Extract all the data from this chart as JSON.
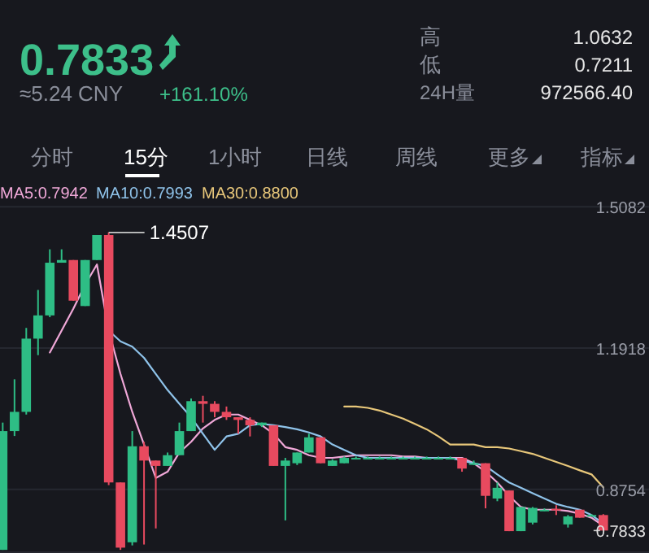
{
  "chart_data": {
    "type": "candlestick",
    "categories": [
      null,
      null,
      null,
      null,
      null,
      null,
      null,
      null,
      null,
      null,
      null,
      null,
      null,
      null,
      null,
      null,
      null,
      null,
      null,
      null,
      null,
      null,
      null,
      null,
      null,
      null,
      null,
      null,
      null,
      null,
      null,
      null,
      null,
      null,
      null,
      null,
      null,
      null,
      null,
      null,
      null,
      null,
      null,
      null,
      null,
      null,
      null,
      null,
      null,
      null,
      null,
      null
    ],
    "ohlc": [
      [
        0.74,
        1.025,
        0.74,
        1.006
      ],
      [
        1.006,
        1.122,
        0.995,
        1.049
      ],
      [
        1.049,
        1.237,
        1.043,
        1.213
      ],
      [
        1.213,
        1.322,
        1.176,
        1.265
      ],
      [
        1.265,
        1.413,
        1.261,
        1.383
      ],
      [
        1.383,
        1.413,
        1.383,
        1.389
      ],
      [
        1.389,
        1.389,
        1.298,
        1.298
      ],
      [
        1.286,
        1.389,
        1.286,
        1.389
      ],
      [
        1.389,
        1.445,
        1.389,
        1.445
      ],
      [
        1.445,
        1.4507,
        0.885,
        0.891
      ],
      [
        0.891,
        0.891,
        0.74,
        0.745
      ],
      [
        0.757,
        1.006,
        0.75,
        0.972
      ],
      [
        0.972,
        0.982,
        0.752,
        0.94
      ],
      [
        0.94,
        0.94,
        0.788,
        0.928
      ],
      [
        0.928,
        0.958,
        0.928,
        0.952
      ],
      [
        0.952,
        1.025,
        0.952,
        1.006
      ],
      [
        1.006,
        1.079,
        1.006,
        1.073
      ],
      [
        1.073,
        1.085,
        1.025,
        1.067
      ],
      [
        1.067,
        1.073,
        1.037,
        1.049
      ],
      [
        1.049,
        1.061,
        1.031,
        1.037
      ],
      [
        1.037,
        1.037,
        1.0,
        1.031
      ],
      [
        1.031,
        1.037,
        0.994,
        1.019
      ],
      [
        1.019,
        1.025,
        1.015,
        1.025
      ],
      [
        1.019,
        1.019,
        0.928,
        0.928
      ],
      [
        0.928,
        0.946,
        0.806,
        0.94
      ],
      [
        0.934,
        0.958,
        0.93,
        0.958
      ],
      [
        0.958,
        1.0,
        0.958,
        0.992
      ],
      [
        0.992,
        0.992,
        0.934,
        0.934
      ],
      [
        0.928,
        0.943,
        0.928,
        0.94
      ],
      [
        0.934,
        0.949,
        0.934,
        0.946
      ],
      [
        0.946,
        0.949,
        0.943,
        0.946
      ],
      [
        0.946,
        0.949,
        0.943,
        0.946
      ],
      [
        0.946,
        0.949,
        0.943,
        0.946
      ],
      [
        0.946,
        0.949,
        0.943,
        0.946
      ],
      [
        0.946,
        0.949,
        0.943,
        0.946
      ],
      [
        0.946,
        0.949,
        0.943,
        0.946
      ],
      [
        0.946,
        0.949,
        0.943,
        0.946
      ],
      [
        0.946,
        0.949,
        0.943,
        0.946
      ],
      [
        0.946,
        0.949,
        0.943,
        0.946
      ],
      [
        0.946,
        0.946,
        0.915,
        0.922
      ],
      [
        0.934,
        0.94,
        0.93,
        0.934
      ],
      [
        0.934,
        0.934,
        0.833,
        0.861
      ],
      [
        0.855,
        0.891,
        0.849,
        0.879
      ],
      [
        0.873,
        0.873,
        0.782,
        0.782
      ],
      [
        0.782,
        0.836,
        0.782,
        0.836
      ],
      [
        0.801,
        0.836,
        0.797,
        0.834
      ],
      [
        0.83,
        0.833,
        0.827,
        0.83
      ],
      [
        0.832,
        0.84,
        0.818,
        0.83
      ],
      [
        0.797,
        0.818,
        0.79,
        0.815
      ],
      [
        0.83,
        0.83,
        0.812,
        0.812
      ],
      [
        0.818,
        0.82,
        0.815,
        0.818
      ],
      [
        0.818,
        0.82,
        0.7833,
        0.7833
      ]
    ],
    "series": [
      {
        "name": "MA5:0.7942",
        "type": "line",
        "color": "#f0a8d8",
        "values": [
          null,
          null,
          null,
          null,
          1.182,
          1.231,
          1.28,
          1.334,
          1.379,
          1.231,
          1.134,
          1.049,
          0.976,
          0.901,
          0.915,
          0.958,
          0.982,
          1.012,
          1.031,
          1.043,
          1.043,
          1.031,
          1.019,
          1.0,
          0.97,
          0.964,
          0.952,
          0.946,
          0.946,
          0.949,
          0.952,
          0.952,
          0.952,
          0.952,
          0.949,
          0.949,
          0.946,
          0.946,
          0.946,
          0.946,
          0.934,
          0.915,
          0.891,
          0.861,
          0.836,
          0.83,
          0.83,
          0.83,
          0.827,
          0.821,
          0.812,
          0.794
        ]
      },
      {
        "name": "MA10:0.7993",
        "type": "line",
        "color": "#8fc3ea",
        "values": [
          null,
          null,
          null,
          null,
          null,
          null,
          null,
          null,
          null,
          1.231,
          1.207,
          1.195,
          1.17,
          1.134,
          1.098,
          1.067,
          1.037,
          1.0,
          0.964,
          0.994,
          1.0,
          1.019,
          1.022,
          1.019,
          1.015,
          1.01,
          1.003,
          0.994,
          0.976,
          0.964,
          0.952,
          0.946,
          0.946,
          0.946,
          0.946,
          0.946,
          0.946,
          0.946,
          0.946,
          0.94,
          0.934,
          0.928,
          0.909,
          0.891,
          0.879,
          0.867,
          0.855,
          0.843,
          0.836,
          0.83,
          0.818,
          0.799
        ]
      },
      {
        "name": "MA30:0.8800",
        "type": "line",
        "color": "#e8c77a",
        "values": [
          null,
          null,
          null,
          null,
          null,
          null,
          null,
          null,
          null,
          null,
          null,
          null,
          null,
          null,
          null,
          null,
          null,
          null,
          null,
          null,
          null,
          null,
          null,
          null,
          null,
          null,
          null,
          null,
          null,
          1.061,
          1.061,
          1.058,
          1.052,
          1.043,
          1.034,
          1.022,
          1.01,
          0.994,
          0.976,
          0.976,
          0.976,
          0.97,
          0.97,
          0.967,
          0.961,
          0.955,
          0.946,
          0.937,
          0.928,
          0.918,
          0.909,
          0.88
        ]
      }
    ],
    "colors": [
      "#2ebd85",
      "#2ebd85",
      "#2ebd85",
      "#2ebd85",
      "#2ebd85",
      "#2ebd85",
      "#e84a5f",
      "#2ebd85",
      "#2ebd85",
      "#e84a5f",
      "#e84a5f",
      "#2ebd85",
      "#e84a5f",
      "#e84a5f",
      "#2ebd85",
      "#2ebd85",
      "#2ebd85",
      "#e84a5f",
      "#e84a5f",
      "#e84a5f",
      "#e84a5f",
      "#e84a5f",
      "#2ebd85",
      "#e84a5f",
      "#2ebd85",
      "#2ebd85",
      "#2ebd85",
      "#e84a5f",
      "#2ebd85",
      "#2ebd85",
      "#2ebd85",
      "#2ebd85",
      "#2ebd85",
      "#2ebd85",
      "#2ebd85",
      "#2ebd85",
      "#2ebd85",
      "#2ebd85",
      "#2ebd85",
      "#e84a5f",
      "#2ebd85",
      "#e84a5f",
      "#2ebd85",
      "#e84a5f",
      "#2ebd85",
      "#2ebd85",
      "#2ebd85",
      "#e84a5f",
      "#2ebd85",
      "#e84a5f",
      "#2ebd85",
      "#e84a5f"
    ],
    "yticks": [
      1.5082,
      1.1918,
      0.8754
    ],
    "ylim": [
      0.733,
      1.516
    ],
    "grid": "y",
    "legend": "top left",
    "ref_lines": [
      {
        "axis": "y",
        "value": 0.7833,
        "label": "0.7833",
        "line_style": "dashed"
      }
    ],
    "annotations": [
      "0.7833",
      "≈5.24 CNY",
      "+161.10%",
      "高",
      "1.0632",
      "低",
      "0.7211",
      "24H量",
      "972566.40",
      "分时",
      "15分",
      "1小时",
      "日线",
      "周线",
      "更多",
      "指标",
      "1.4507"
    ]
  }
}
